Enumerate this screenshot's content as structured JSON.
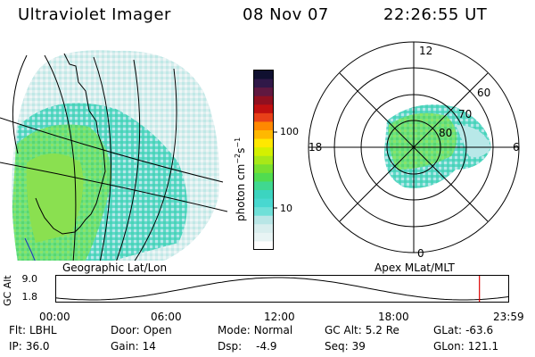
{
  "header": {
    "title": "Ultraviolet Imager",
    "date": "08 Nov 07",
    "time": "22:26:55 UT"
  },
  "panels": {
    "geo_caption": "Geographic Lat/Lon",
    "apex_caption": "Apex MLat/MLT"
  },
  "colorbar": {
    "label_main": "photon cm",
    "label_exp1": "−2",
    "label_mid": "s",
    "label_exp2": "−1",
    "tick_100": "100",
    "tick_10": "10",
    "colors": [
      "#ffffff",
      "#e8f4f4",
      "#d8eeee",
      "#b8e6e6",
      "#6fe0d8",
      "#48d8d0",
      "#3cd4c0",
      "#40d890",
      "#50dc50",
      "#78e030",
      "#a8e818",
      "#d4f000",
      "#ffe800",
      "#ffb800",
      "#ff8800",
      "#e84018",
      "#c01010",
      "#901020",
      "#601840",
      "#301848",
      "#101030"
    ]
  },
  "polar": {
    "mlt_top": "12",
    "mlt_left": "18",
    "mlt_right": "6",
    "mlt_bottom": "0",
    "lat_60": "60",
    "lat_70": "70",
    "lat_80": "80"
  },
  "orbit": {
    "ylabel": "GC Alt",
    "y_top": "9.0",
    "y_bottom": "1.8",
    "x_ticks": [
      "00:00",
      "06:00",
      "12:00",
      "18:00",
      "23:59"
    ],
    "marker_time_hours": 22.45,
    "line_color": "#000000",
    "marker_color": "#dd0000"
  },
  "info": {
    "flt_label": "Flt:",
    "flt_value": "LBHL",
    "ip_label": "IP:",
    "ip_value": "36.0",
    "door_label": "Door:",
    "door_value": "Open",
    "gain_label": "Gain:",
    "gain_value": "14",
    "mode_label": "Mode:",
    "mode_value": "Normal",
    "dsp_label": "Dsp:",
    "dsp_value": "-4.9",
    "gcalt_label": "GC Alt:",
    "gcalt_value": "5.2 Re",
    "seq_label": "Seq:",
    "seq_value": "39",
    "glat_label": "GLat:",
    "glat_value": "-63.6",
    "glon_label": "GLon:",
    "glon_value": "121.1"
  }
}
